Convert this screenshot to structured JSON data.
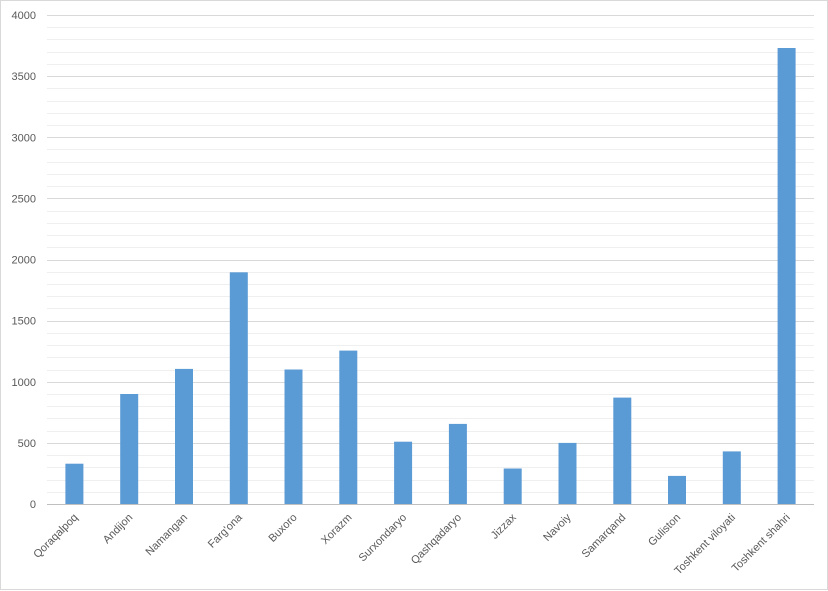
{
  "chart_data": {
    "type": "bar",
    "title": "",
    "xlabel": "",
    "ylabel": "",
    "ylim": [
      0,
      4000
    ],
    "yticks": [
      0,
      500,
      1000,
      1500,
      2000,
      2500,
      3000,
      3500,
      4000
    ],
    "grid": true,
    "bar_color": "#5b9bd5",
    "categories": [
      "Qoraqalpoq",
      "Andijon",
      "Namangan",
      "Farg'ona",
      "Buxoro",
      "Xorazm",
      "Surxondaryo",
      "Qashqadaryo",
      "Jizzax",
      "Navoiy",
      "Samarqand",
      "Guliston",
      "Toshkent viloyati",
      "Toshkent shahri"
    ],
    "values": [
      330,
      900,
      1105,
      1895,
      1100,
      1255,
      510,
      655,
      290,
      500,
      870,
      230,
      430,
      3730
    ]
  }
}
